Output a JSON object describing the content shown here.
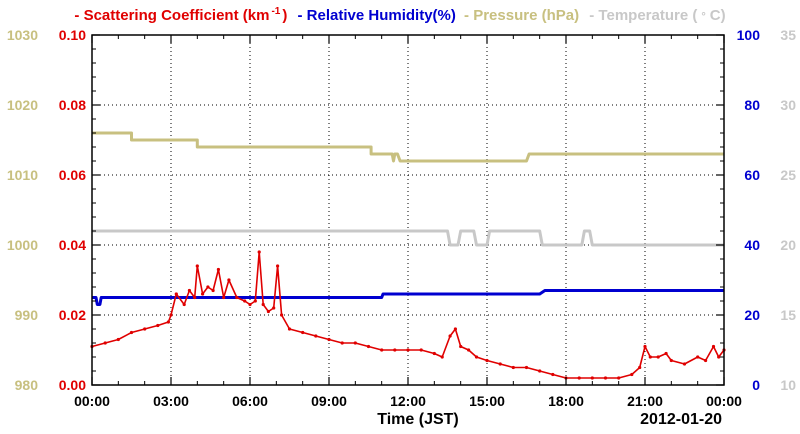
{
  "chart_data": {
    "type": "line",
    "xlabel": "Time (JST)",
    "date_label": "2012-01-20",
    "x_ticks": [
      "00:00",
      "03:00",
      "06:00",
      "09:00",
      "12:00",
      "15:00",
      "18:00",
      "21:00",
      "00:00"
    ],
    "x_range_hours": [
      0,
      24
    ],
    "grid": true,
    "legend_placement": "top",
    "axes": {
      "pressure": {
        "ticks": [
          "980",
          "990",
          "1000",
          "1010",
          "1020",
          "1030"
        ],
        "range": [
          980,
          1030
        ],
        "color": "#c8c080"
      },
      "scattering": {
        "ticks": [
          "0.00",
          "0.02",
          "0.04",
          "0.06",
          "0.08",
          "0.10"
        ],
        "range": [
          0,
          0.1
        ],
        "color": "#e00000"
      },
      "humidity": {
        "ticks": [
          "0",
          "20",
          "40",
          "60",
          "80",
          "100"
        ],
        "range": [
          0,
          100
        ],
        "color": "#0000d0"
      },
      "temperature": {
        "ticks": [
          "10",
          "15",
          "20",
          "25",
          "30",
          "35"
        ],
        "range": [
          10,
          35
        ],
        "color": "#c8c8c8"
      }
    },
    "series": [
      {
        "name": "Scattering Coefficient",
        "legend": "- Scattering Coefficient (km",
        "legend_sup": "-1",
        "legend_tail": ")",
        "color": "#e00000",
        "axis": "scattering",
        "x": [
          0,
          0.5,
          1,
          1.5,
          2,
          2.5,
          2.9,
          3.0,
          3.2,
          3.5,
          3.7,
          3.9,
          4.0,
          4.2,
          4.4,
          4.6,
          4.8,
          5.0,
          5.2,
          5.5,
          5.8,
          6.0,
          6.2,
          6.35,
          6.5,
          6.7,
          6.9,
          7.05,
          7.2,
          7.5,
          8,
          8.5,
          9,
          9.5,
          10,
          10.5,
          11,
          11.5,
          12,
          12.5,
          13,
          13.3,
          13.6,
          13.8,
          14.0,
          14.3,
          14.6,
          15,
          15.5,
          16,
          16.5,
          17,
          17.5,
          18,
          18.5,
          19,
          19.5,
          20,
          20.5,
          20.8,
          21.0,
          21.2,
          21.5,
          21.8,
          22,
          22.5,
          23,
          23.3,
          23.6,
          23.8,
          24
        ],
        "values": [
          0.011,
          0.012,
          0.013,
          0.015,
          0.016,
          0.017,
          0.018,
          0.02,
          0.026,
          0.023,
          0.027,
          0.025,
          0.034,
          0.026,
          0.028,
          0.027,
          0.033,
          0.025,
          0.03,
          0.025,
          0.024,
          0.023,
          0.024,
          0.038,
          0.023,
          0.021,
          0.022,
          0.034,
          0.02,
          0.016,
          0.015,
          0.014,
          0.013,
          0.012,
          0.012,
          0.011,
          0.01,
          0.01,
          0.01,
          0.01,
          0.009,
          0.008,
          0.014,
          0.016,
          0.011,
          0.01,
          0.008,
          0.007,
          0.006,
          0.005,
          0.005,
          0.004,
          0.003,
          0.002,
          0.002,
          0.002,
          0.002,
          0.002,
          0.003,
          0.005,
          0.011,
          0.008,
          0.008,
          0.009,
          0.007,
          0.006,
          0.008,
          0.007,
          0.011,
          0.008,
          0.01
        ]
      },
      {
        "name": "Relative Humidity",
        "legend": "- Relative Humidity(%)",
        "color": "#0000d0",
        "axis": "humidity",
        "x": [
          0,
          0.15,
          0.2,
          0.3,
          0.35,
          0.5,
          11,
          11.05,
          15,
          17,
          17.2,
          17.5,
          18.7,
          20,
          24
        ],
        "values": [
          25,
          25,
          23,
          23,
          25,
          25,
          25,
          26,
          26,
          26,
          27,
          27,
          27,
          27,
          27
        ]
      },
      {
        "name": "Pressure",
        "legend": "- Pressure (hPa)",
        "color": "#c8c080",
        "axis": "pressure",
        "x": [
          0,
          1.5,
          1.5,
          4.0,
          4.0,
          10.6,
          10.6,
          11.4,
          11.45,
          11.5,
          11.6,
          11.7,
          16.5,
          16.6,
          16.7,
          24
        ],
        "values": [
          1016,
          1016,
          1015,
          1015,
          1014,
          1014,
          1013,
          1013,
          1012,
          1013,
          1013,
          1012,
          1012,
          1013,
          1013,
          1013
        ]
      },
      {
        "name": "Temperature",
        "legend": "- Temperature (",
        "legend_unit": "C)",
        "color": "#c8c8c8",
        "axis": "temperature",
        "x": [
          0,
          13.5,
          13.6,
          13.9,
          14.0,
          14.5,
          14.6,
          15.0,
          15.1,
          17.0,
          17.1,
          18.6,
          18.7,
          18.9,
          19.0,
          20.0,
          20.1,
          24
        ],
        "values": [
          21,
          21,
          20,
          20,
          21,
          21,
          20,
          20,
          21,
          21,
          20,
          20,
          21,
          21,
          20,
          20,
          20,
          20
        ]
      }
    ]
  }
}
